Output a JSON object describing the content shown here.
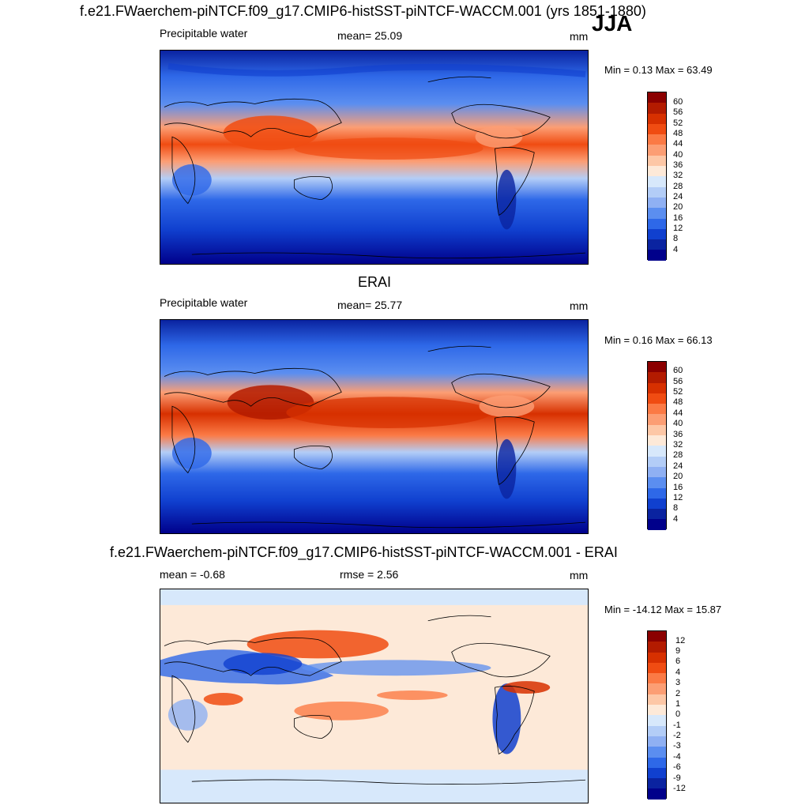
{
  "main_title": "f.e21.FWaerchem-piNTCF.f09_g17.CMIP6-histSST-piNTCF-WACCM.001 (yrs 1851-1880)",
  "season": "JJA",
  "panels": [
    {
      "heading": "",
      "left_label": "Precipitable water",
      "center_label": "mean=  25.09",
      "units": "mm",
      "minmax": "Min =   0.13 Max =  63.49",
      "legend": [
        "60",
        "56",
        "52",
        "48",
        "44",
        "40",
        "36",
        "32",
        "28",
        "24",
        "20",
        "16",
        "12",
        "8",
        "4"
      ]
    },
    {
      "heading": "ERAI",
      "left_label": "Precipitable water",
      "center_label": "mean=  25.77",
      "units": "mm",
      "minmax": "Min =   0.16 Max =  66.13",
      "legend": [
        "60",
        "56",
        "52",
        "48",
        "44",
        "40",
        "36",
        "32",
        "28",
        "24",
        "20",
        "16",
        "12",
        "8",
        "4"
      ]
    },
    {
      "heading": "f.e21.FWaerchem-piNTCF.f09_g17.CMIP6-histSST-piNTCF-WACCM.001 - ERAI",
      "left_label": "mean =  -0.68",
      "center_label": "rmse =   2.56",
      "units": "mm",
      "minmax": "Min = -14.12 Max =  15.87",
      "legend": [
        "12",
        "9",
        "6",
        "4",
        "3",
        "2",
        "1",
        "0",
        "-1",
        "-2",
        "-3",
        "-4",
        "-6",
        "-9",
        "-12"
      ]
    }
  ],
  "colors": {
    "abs_scale": [
      "#8b0000",
      "#b31b00",
      "#d73000",
      "#f04c12",
      "#fb7a45",
      "#fc9e74",
      "#fdc7a6",
      "#fde9d8",
      "#d7e8fb",
      "#b3cdf7",
      "#8fb0f3",
      "#5b8ef0",
      "#2e68e8",
      "#1040cf",
      "#0a23a0",
      "#00008b"
    ],
    "diff_scale": [
      "#8b0000",
      "#b31b00",
      "#d73000",
      "#f04c12",
      "#fb7a45",
      "#fc9e74",
      "#fdc7a6",
      "#fde9d8",
      "#d7e8fb",
      "#b3cdf7",
      "#8fb0f3",
      "#5b8ef0",
      "#2e68e8",
      "#1040cf",
      "#0a23a0",
      "#00008b"
    ],
    "coast": "#000000"
  }
}
